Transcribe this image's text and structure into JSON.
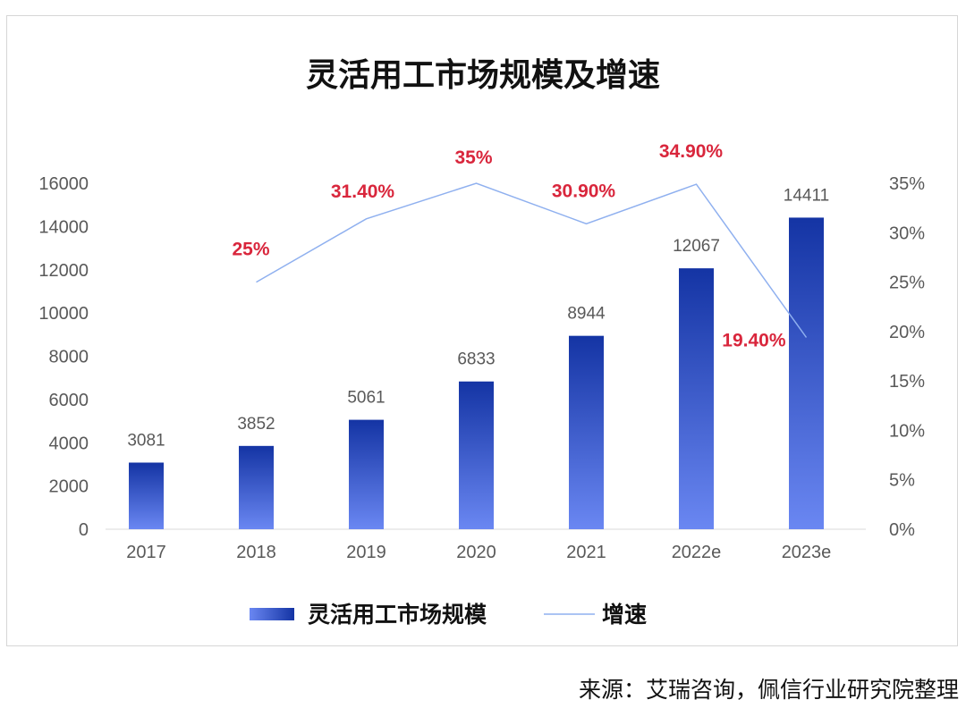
{
  "chart_data": {
    "type": "bar",
    "title": "灵活用工市场规模及增速",
    "categories": [
      "2017",
      "2018",
      "2019",
      "2020",
      "2021",
      "2022e",
      "2023e"
    ],
    "series": [
      {
        "name": "灵活用工市场规模",
        "type": "bar",
        "axis": "left",
        "values": [
          3081,
          3852,
          5061,
          6833,
          8944,
          12067,
          14411
        ],
        "labels": [
          "3081",
          "3852",
          "5061",
          "6833",
          "8944",
          "12067",
          "14411"
        ]
      },
      {
        "name": "增速",
        "type": "line",
        "axis": "right",
        "values": [
          null,
          25,
          31.4,
          35,
          30.9,
          34.9,
          19.4
        ],
        "labels": [
          null,
          "25%",
          "31.40%",
          "35%",
          "30.90%",
          "34.90%",
          "19.40%"
        ]
      }
    ],
    "y_left": {
      "ylim": [
        0,
        16000
      ],
      "ticks": [
        "0",
        "2000",
        "4000",
        "6000",
        "8000",
        "10000",
        "12000",
        "14000",
        "16000"
      ]
    },
    "y_right": {
      "ylim": [
        0,
        35
      ],
      "ticks": [
        "0%",
        "5%",
        "10%",
        "15%",
        "20%",
        "25%",
        "30%",
        "35%"
      ]
    },
    "grid": false,
    "legend_position": "bottom",
    "colors": {
      "bar_top": "#1434a4",
      "bar_bottom": "#6a87f2",
      "line": "#8fb0ef",
      "rate_label": "#d9263c"
    }
  },
  "source": "来源：艾瑞咨询，佩信行业研究院整理"
}
